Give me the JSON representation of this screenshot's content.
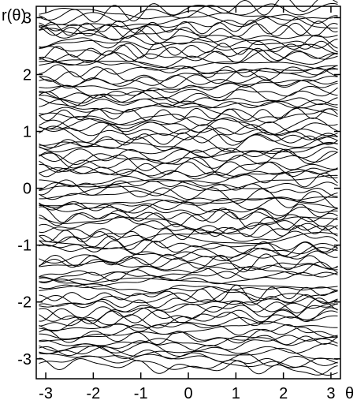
{
  "chart_data": {
    "type": "line",
    "title": "",
    "xlabel": "θ",
    "ylabel": "r(θ)",
    "xlim": [
      -3.2,
      3.2
    ],
    "ylim": [
      -3.35,
      3.2
    ],
    "xticks": [
      -3,
      -2,
      -1,
      0,
      1,
      2,
      3
    ],
    "xtick_labels": [
      "-3",
      "-2",
      "-1",
      "0",
      "1",
      "2",
      "3"
    ],
    "yticks": [
      -3,
      -2,
      -1,
      0,
      1,
      2,
      3
    ],
    "ytick_labels": [
      "-3",
      "-2",
      "-1",
      "0",
      "1",
      "2",
      "3"
    ],
    "grid": false,
    "legend": "none",
    "line_color": "#000000",
    "series_count": 100,
    "series_baseline_range": [
      -3.142,
      3.142
    ],
    "series_wiggle_amplitude": 0.18,
    "series_x_range": [
      -3.142,
      3.142
    ],
    "series_description": "many (~100) irregular horizontal curves r(θ), one per level, stacked between r = -π and r = π"
  }
}
